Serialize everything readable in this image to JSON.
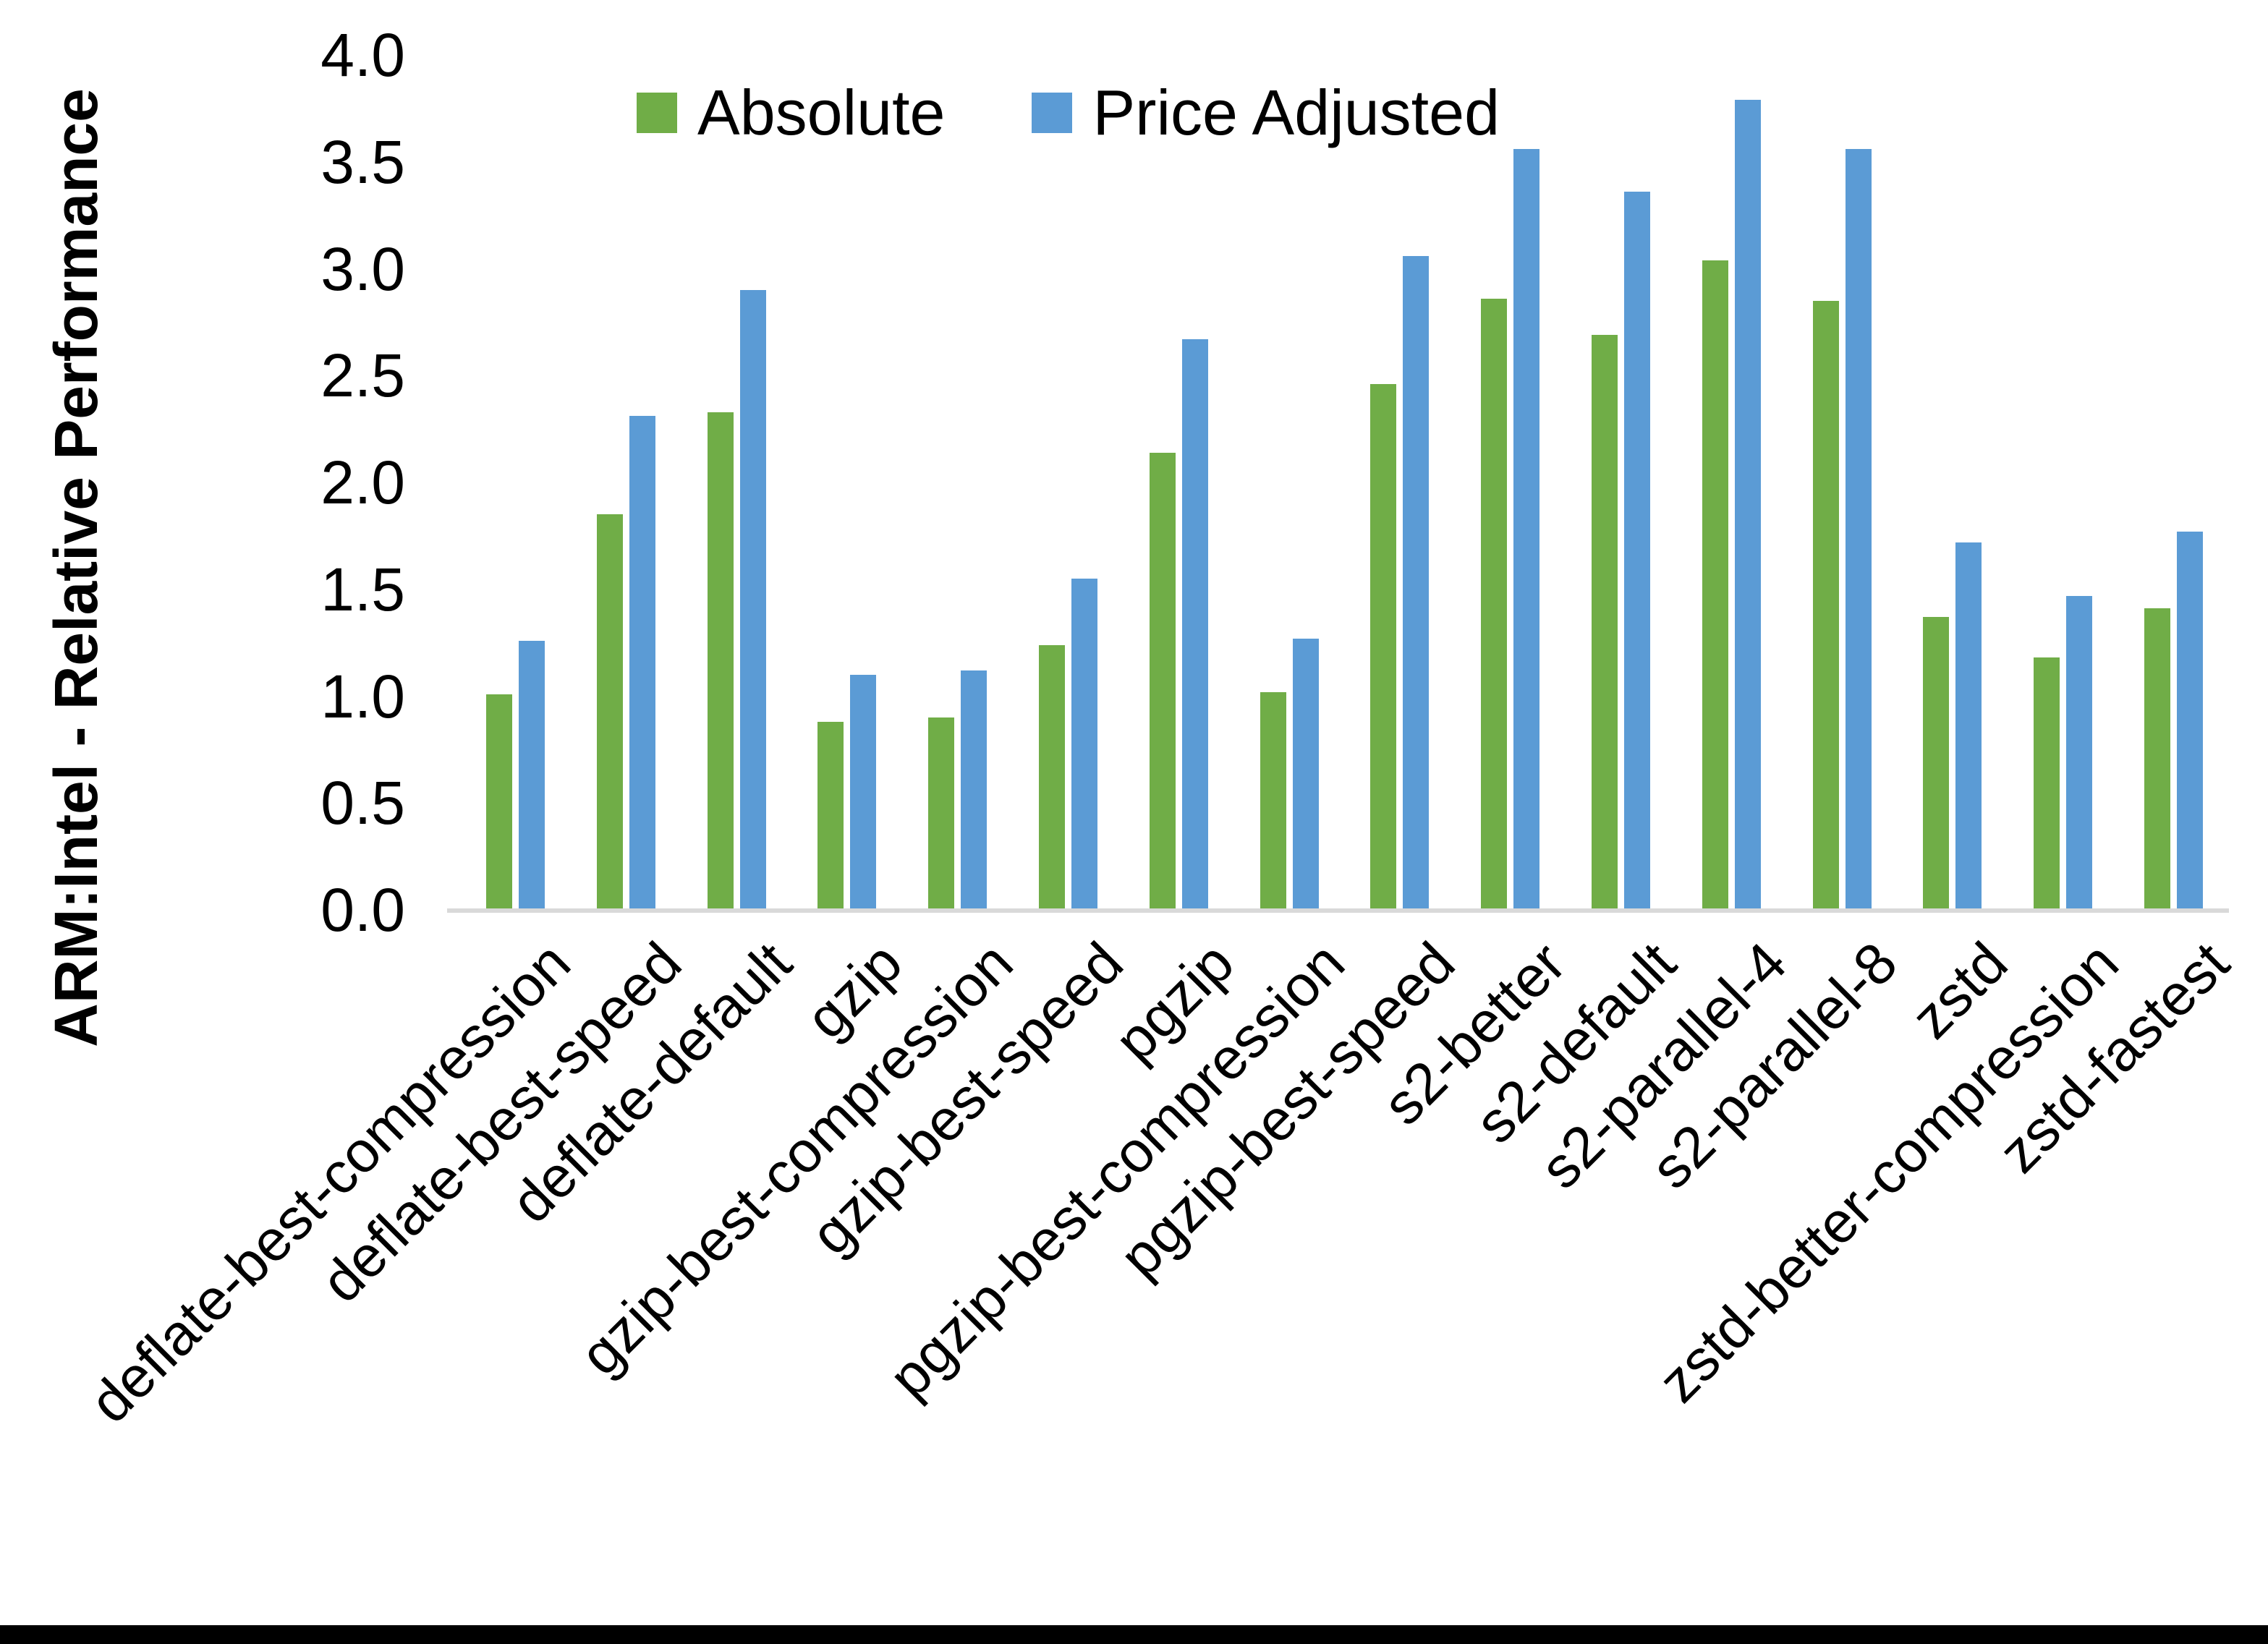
{
  "chart_data": {
    "type": "bar",
    "title": "",
    "xlabel": "",
    "ylabel": "ARM:Intel - Relative Performance",
    "ylim": [
      0.0,
      4.0
    ],
    "ytick_step": 0.5,
    "yticks": [
      "4.0",
      "3.5",
      "3.0",
      "2.5",
      "2.0",
      "1.5",
      "1.0",
      "0.5",
      "0.0"
    ],
    "grid": false,
    "legend_position": "top-center",
    "categories": [
      "deflate-best-compression",
      "deflate-best-speed",
      "deflate-default",
      "gzip",
      "gzip-best-compression",
      "gzip-best-speed",
      "pgzip",
      "pgzip-best-compression",
      "pgzip-best-speed",
      "s2-better",
      "s2-default",
      "s2-parallel-4",
      "s2-parallel-8",
      "zstd",
      "zstd-better-compression",
      "zstd-fastest"
    ],
    "series": [
      {
        "name": "Absolute",
        "color": "#70AD47",
        "values": [
          1.01,
          1.85,
          2.33,
          0.88,
          0.9,
          1.24,
          2.14,
          1.02,
          2.46,
          2.86,
          2.69,
          3.04,
          2.85,
          1.37,
          1.18,
          1.41
        ]
      },
      {
        "name": "Price Adjusted",
        "color": "#5B9BD5",
        "values": [
          1.26,
          2.31,
          2.9,
          1.1,
          1.12,
          1.55,
          2.67,
          1.27,
          3.06,
          3.56,
          3.36,
          3.79,
          3.56,
          1.72,
          1.47,
          1.77
        ]
      }
    ]
  },
  "colors": {
    "background": "#FFFFFF",
    "axis_line": "#D9D9D9",
    "text": "#000000",
    "bottom_border": "#000000"
  }
}
